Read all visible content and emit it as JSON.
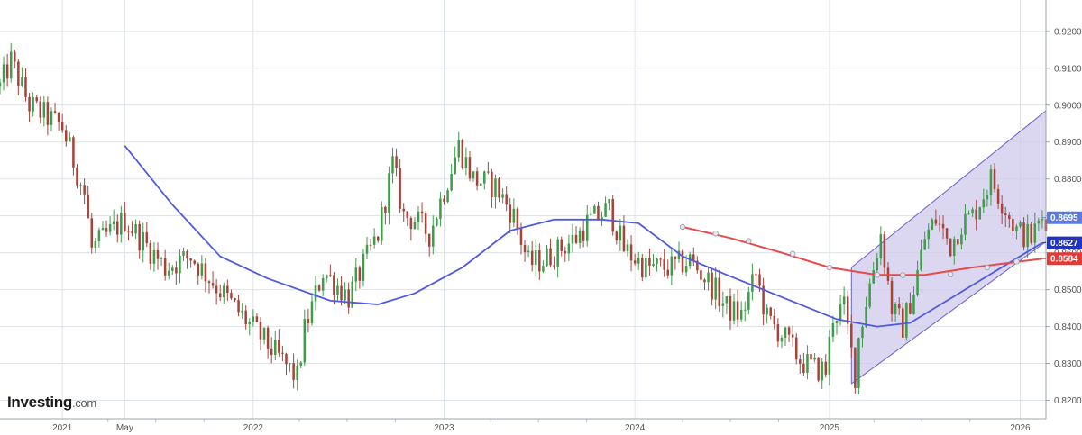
{
  "brand": {
    "name": "Investing",
    "suffix": ".com"
  },
  "chart_data": {
    "type": "candlestick",
    "interval": "weekly",
    "y_ticks": [
      "0.9200",
      "0.9100",
      "0.9000",
      "0.8900",
      "0.8800",
      "0.8700",
      "0.8600",
      "0.8500",
      "0.8400",
      "0.8300",
      "0.8200"
    ],
    "y_tick_values": [
      0.92,
      0.91,
      0.9,
      0.89,
      0.88,
      0.87,
      0.86,
      0.85,
      0.84,
      0.83,
      0.82
    ],
    "ylim": [
      0.815,
      0.9285
    ],
    "x_labels": [
      {
        "label": "2021",
        "date": "2021-01-04"
      },
      {
        "label": "May",
        "date": "2021-05-03"
      },
      {
        "label": "2022",
        "date": "2022-01-03"
      },
      {
        "label": "2023",
        "date": "2023-01-02"
      },
      {
        "label": "2024",
        "date": "2024-01-01"
      },
      {
        "label": "2025",
        "date": "2025-01-06"
      },
      {
        "label": "2026",
        "date": "2026-01-05"
      }
    ],
    "xlim": [
      "2020-09-07",
      "2026-02-23"
    ],
    "price_labels": [
      {
        "text": "0.8695",
        "value": 0.8695,
        "color": "#5b7be0"
      },
      {
        "text": "0.8627",
        "value": 0.8627,
        "color": "#1f33c9"
      },
      {
        "text": "0.8584",
        "value": 0.8584,
        "color": "#e53935"
      }
    ],
    "colors": {
      "up": "#3e9c4a",
      "down": "#a8433a",
      "ma_blue": "#4f5ae0",
      "ma_red": "#e84a4a",
      "channel_fill": "#cfcaeb",
      "channel_edge": "#6b62c8",
      "grid": "#dde3ea"
    },
    "key_closes": [
      [
        "2020-09-07",
        0.905
      ],
      [
        "2020-09-28",
        0.912
      ],
      [
        "2020-11-02",
        0.9
      ],
      [
        "2021-01-04",
        0.894
      ],
      [
        "2021-02-15",
        0.876
      ],
      [
        "2021-03-01",
        0.861
      ],
      [
        "2021-05-03",
        0.869
      ],
      [
        "2021-07-19",
        0.856
      ],
      [
        "2021-09-06",
        0.859
      ],
      [
        "2021-12-06",
        0.844
      ],
      [
        "2022-03-28",
        0.826
      ],
      [
        "2022-04-11",
        0.839
      ],
      [
        "2022-05-16",
        0.855
      ],
      [
        "2022-07-04",
        0.848
      ],
      [
        "2022-08-29",
        0.865
      ],
      [
        "2022-09-26",
        0.884
      ],
      [
        "2022-10-17",
        0.87
      ],
      [
        "2022-11-07",
        0.869
      ],
      [
        "2022-12-05",
        0.865
      ],
      [
        "2023-01-30",
        0.889
      ],
      [
        "2023-02-27",
        0.88
      ],
      [
        "2023-04-10",
        0.878
      ],
      [
        "2023-05-15",
        0.87
      ],
      [
        "2023-06-12",
        0.857
      ],
      [
        "2023-07-10",
        0.858
      ],
      [
        "2023-09-11",
        0.864
      ],
      [
        "2023-10-02",
        0.868
      ],
      [
        "2023-11-13",
        0.872
      ],
      [
        "2023-12-11",
        0.861
      ],
      [
        "2024-01-22",
        0.856
      ],
      [
        "2024-03-11",
        0.856
      ],
      [
        "2024-04-15",
        0.858
      ],
      [
        "2024-05-27",
        0.851
      ],
      [
        "2024-06-24",
        0.845
      ],
      [
        "2024-07-22",
        0.843
      ],
      [
        "2024-08-19",
        0.854
      ],
      [
        "2024-09-09",
        0.842
      ],
      [
        "2024-10-07",
        0.838
      ],
      [
        "2024-11-11",
        0.831
      ],
      [
        "2024-12-02",
        0.829
      ],
      [
        "2024-12-30",
        0.828
      ],
      [
        "2025-01-13",
        0.843
      ],
      [
        "2025-02-03",
        0.845
      ],
      [
        "2025-02-24",
        0.827
      ],
      [
        "2025-03-03",
        0.837
      ],
      [
        "2025-03-17",
        0.847
      ],
      [
        "2025-03-31",
        0.856
      ],
      [
        "2025-04-14",
        0.865
      ],
      [
        "2025-05-05",
        0.845
      ],
      [
        "2025-05-26",
        0.84
      ],
      [
        "2025-06-16",
        0.85
      ],
      [
        "2025-07-07",
        0.864
      ],
      [
        "2025-07-28",
        0.869
      ],
      [
        "2025-08-25",
        0.862
      ],
      [
        "2025-09-15",
        0.868
      ],
      [
        "2025-10-06",
        0.87
      ],
      [
        "2025-10-27",
        0.876
      ],
      [
        "2025-11-10",
        0.88
      ],
      [
        "2025-12-01",
        0.874
      ],
      [
        "2025-12-29",
        0.866
      ],
      [
        "2026-01-26",
        0.864
      ],
      [
        "2026-02-16",
        0.8695
      ]
    ],
    "ma_blue_points": [
      [
        "2021-05-03",
        0.889
      ],
      [
        "2021-08-02",
        0.873
      ],
      [
        "2021-11-01",
        0.859
      ],
      [
        "2022-01-31",
        0.853
      ],
      [
        "2022-05-30",
        0.847
      ],
      [
        "2022-08-29",
        0.846
      ],
      [
        "2022-11-07",
        0.849
      ],
      [
        "2023-02-06",
        0.856
      ],
      [
        "2023-05-08",
        0.866
      ],
      [
        "2023-07-31",
        0.869
      ],
      [
        "2023-10-30",
        0.869
      ],
      [
        "2024-01-08",
        0.868
      ],
      [
        "2024-04-01",
        0.859
      ],
      [
        "2024-06-24",
        0.854
      ],
      [
        "2024-10-07",
        0.848
      ],
      [
        "2025-01-20",
        0.842
      ],
      [
        "2025-04-07",
        0.84
      ],
      [
        "2025-06-09",
        0.841
      ],
      [
        "2025-08-18",
        0.847
      ],
      [
        "2026-02-16",
        0.8627
      ]
    ],
    "ma_red_points": [
      [
        "2024-04-01",
        0.867
      ],
      [
        "2024-07-01",
        0.864
      ],
      [
        "2024-10-07",
        0.86
      ],
      [
        "2025-01-06",
        0.856
      ],
      [
        "2025-04-07",
        0.854
      ],
      [
        "2025-07-07",
        0.854
      ],
      [
        "2025-10-06",
        0.856
      ],
      [
        "2026-02-16",
        0.8584
      ]
    ],
    "ma_red_markers": [
      [
        "2024-04-01",
        0.867
      ],
      [
        "2024-06-03",
        0.8652
      ],
      [
        "2024-08-05",
        0.8632
      ],
      [
        "2024-10-28",
        0.8597
      ],
      [
        "2025-01-06",
        0.856
      ],
      [
        "2025-04-07",
        0.854
      ],
      [
        "2025-05-26",
        0.8539
      ],
      [
        "2025-08-25",
        0.8541
      ],
      [
        "2025-11-03",
        0.856
      ],
      [
        "2025-12-29",
        0.8576
      ]
    ],
    "channel": {
      "start": "2025-02-17",
      "end": "2026-02-23",
      "lower_start": 0.8245,
      "upper_start": 0.856,
      "lower_end": 0.863,
      "upper_end": 0.8985
    }
  }
}
